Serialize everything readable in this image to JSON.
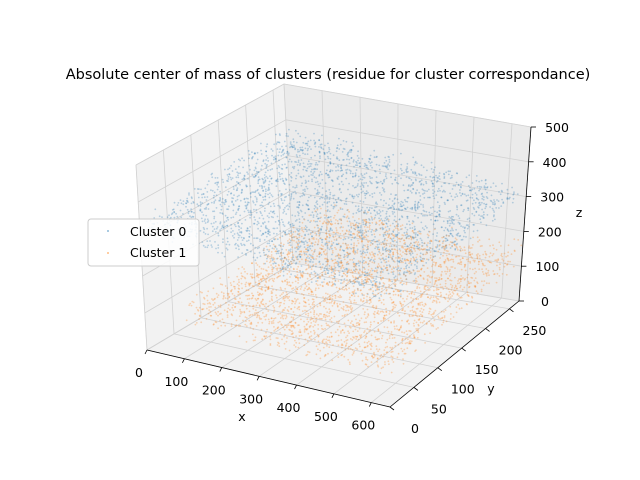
{
  "chart_data": {
    "type": "scatter",
    "projection": "3d",
    "title": "Absolute center of mass of clusters (residue for cluster correspondance)",
    "xlabel": "x",
    "ylabel": "y",
    "zlabel": "z",
    "xlim": [
      0,
      650
    ],
    "ylim": [
      0,
      270
    ],
    "zlim": [
      0,
      500
    ],
    "x_ticks": [
      0,
      100,
      200,
      300,
      400,
      500,
      600
    ],
    "y_ticks": [
      0,
      50,
      100,
      150,
      200,
      250
    ],
    "z_ticks": [
      0,
      100,
      200,
      300,
      400,
      500
    ],
    "grid": true,
    "legend": "center-left",
    "series": [
      {
        "name": "Cluster 0",
        "color": "#1f77b4",
        "x_range": [
          0,
          650
        ],
        "y_range": [
          0,
          270
        ],
        "z_range": [
          230,
          420
        ]
      },
      {
        "name": "Cluster 1",
        "color": "#ff7f0e",
        "x_range": [
          100,
          650
        ],
        "y_range": [
          0,
          270
        ],
        "z_range": [
          60,
          200
        ]
      }
    ]
  }
}
